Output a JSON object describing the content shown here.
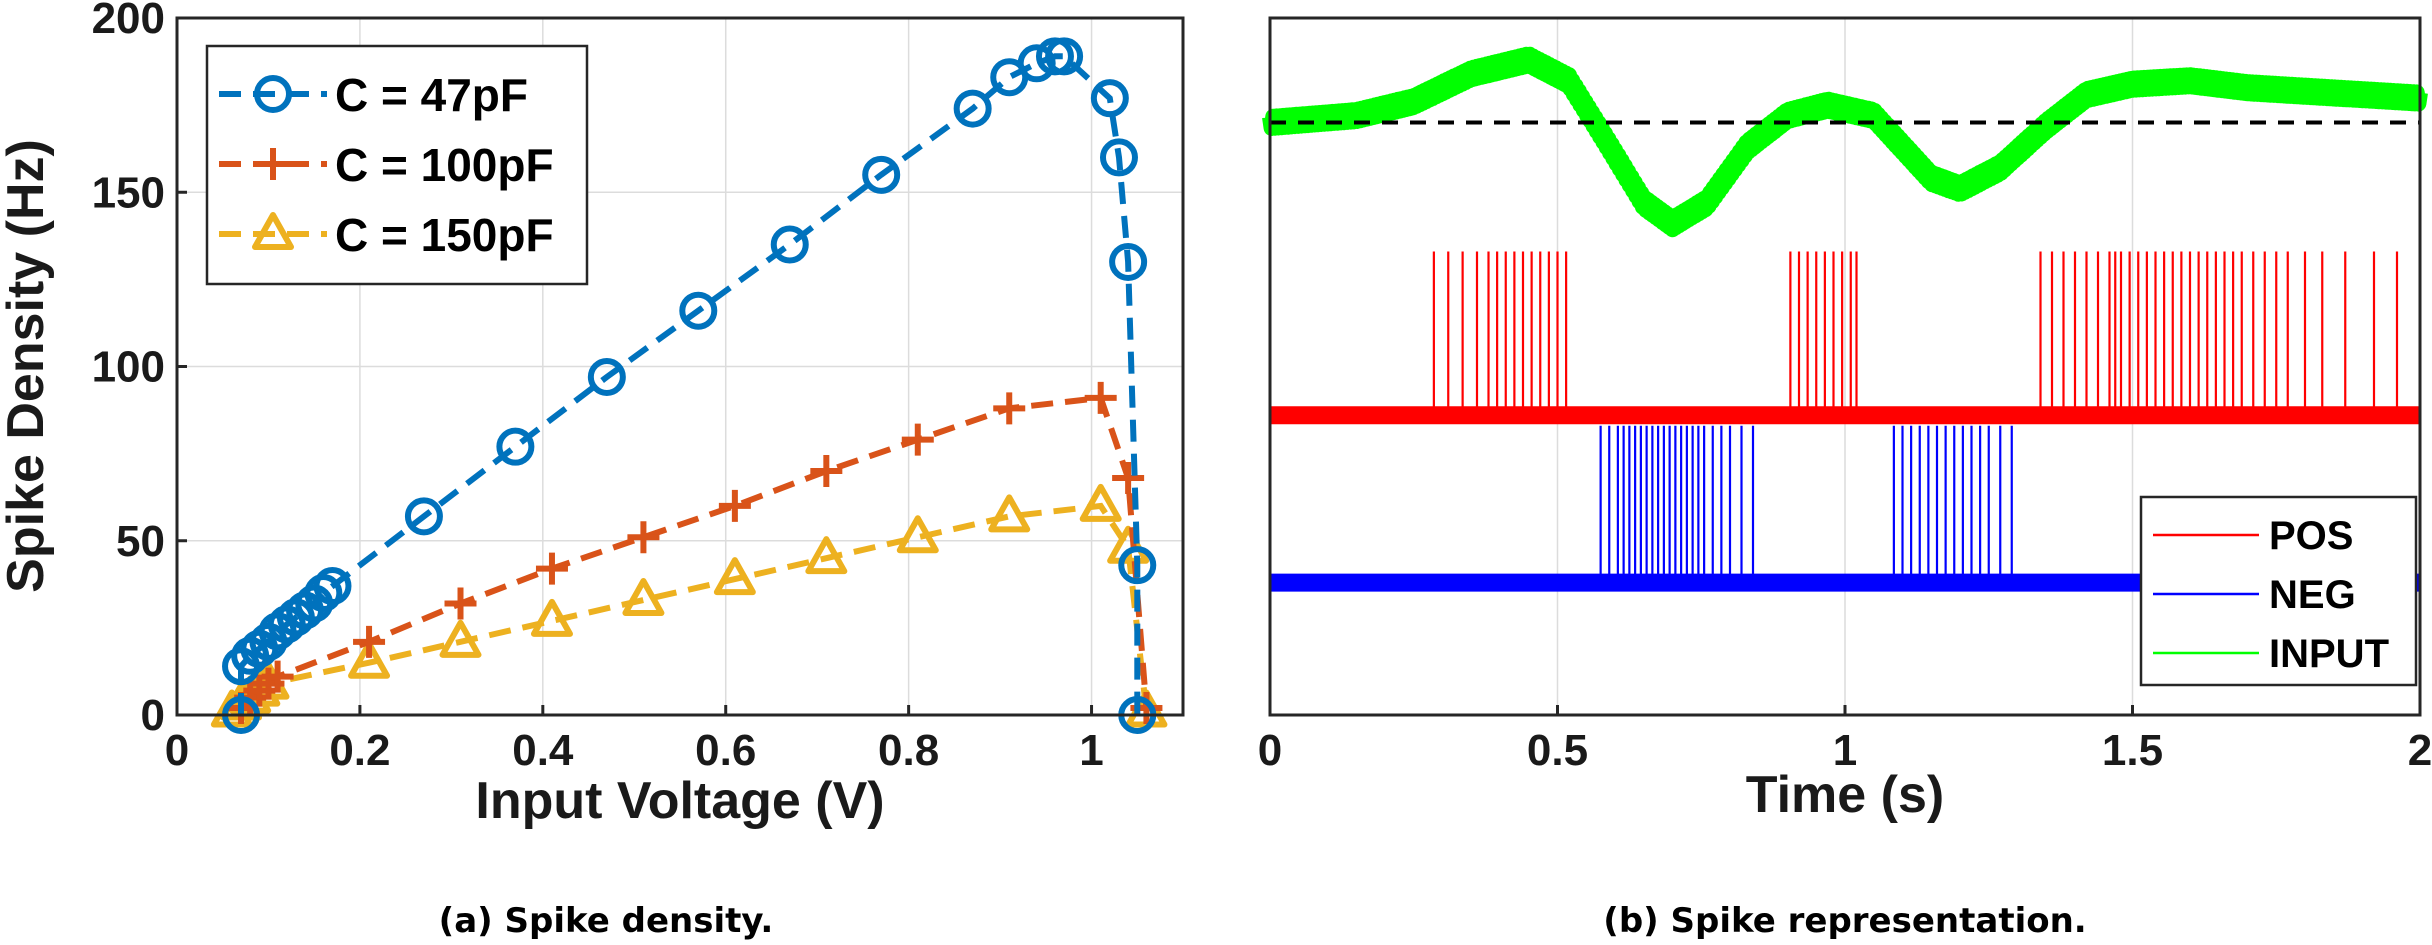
{
  "chart_data": [
    {
      "type": "line",
      "caption": "(a) Spike density.",
      "xlabel": "Input Voltage (V)",
      "ylabel": "Spike Density (Hz)",
      "xlim": [
        0,
        1.1
      ],
      "ylim": [
        0,
        200
      ],
      "xticks": [
        0,
        0.2,
        0.4,
        0.6,
        0.8,
        1
      ],
      "xtick_labels": [
        "0",
        "0.2",
        "0.4",
        "0.6",
        "0.8",
        "1"
      ],
      "yticks": [
        0,
        50,
        100,
        150,
        200
      ],
      "ytick_labels": [
        "0",
        "50",
        "100",
        "150",
        "200"
      ],
      "grid": true,
      "legend_position": "top-left",
      "series": [
        {
          "name": "C = 47pF",
          "color": "#0072BD",
          "marker": "circle",
          "points": [
            [
              0.07,
              0
            ],
            [
              0.07,
              14
            ],
            [
              0.08,
              17
            ],
            [
              0.09,
              19
            ],
            [
              0.1,
              21
            ],
            [
              0.11,
              24
            ],
            [
              0.12,
              26
            ],
            [
              0.13,
              28
            ],
            [
              0.14,
              30
            ],
            [
              0.15,
              32
            ],
            [
              0.16,
              35
            ],
            [
              0.17,
              37
            ],
            [
              0.27,
              57
            ],
            [
              0.37,
              77
            ],
            [
              0.47,
              97
            ],
            [
              0.57,
              116
            ],
            [
              0.67,
              135
            ],
            [
              0.77,
              155
            ],
            [
              0.87,
              174
            ],
            [
              0.91,
              183
            ],
            [
              0.94,
              187
            ],
            [
              0.96,
              189
            ],
            [
              0.97,
              189
            ],
            [
              1.02,
              177
            ],
            [
              1.03,
              160
            ],
            [
              1.04,
              130
            ],
            [
              1.05,
              43
            ],
            [
              1.05,
              0
            ]
          ]
        },
        {
          "name": "C = 100pF",
          "color": "#D95319",
          "marker": "plus",
          "points": [
            [
              0.07,
              2
            ],
            [
              0.08,
              5
            ],
            [
              0.09,
              7
            ],
            [
              0.1,
              9
            ],
            [
              0.11,
              11
            ],
            [
              0.21,
              21
            ],
            [
              0.31,
              32
            ],
            [
              0.41,
              42
            ],
            [
              0.51,
              51
            ],
            [
              0.61,
              60
            ],
            [
              0.71,
              70
            ],
            [
              0.81,
              79
            ],
            [
              0.91,
              88
            ],
            [
              1.01,
              91
            ],
            [
              1.04,
              68
            ],
            [
              1.06,
              2
            ]
          ]
        },
        {
          "name": "C = 150pF",
          "color": "#EDB120",
          "marker": "triangle",
          "points": [
            [
              0.06,
              1
            ],
            [
              0.07,
              3
            ],
            [
              0.08,
              5
            ],
            [
              0.09,
              7
            ],
            [
              0.1,
              9
            ],
            [
              0.21,
              15
            ],
            [
              0.31,
              21
            ],
            [
              0.41,
              27
            ],
            [
              0.51,
              33
            ],
            [
              0.61,
              39
            ],
            [
              0.71,
              45
            ],
            [
              0.81,
              51
            ],
            [
              0.91,
              57
            ],
            [
              1.01,
              60
            ],
            [
              1.04,
              48
            ],
            [
              1.06,
              1
            ]
          ]
        }
      ]
    },
    {
      "type": "line",
      "caption": "(b) Spike representation.",
      "xlabel": "Time (s)",
      "ylabel": "",
      "xlim": [
        0,
        2
      ],
      "xticks": [
        0,
        0.5,
        1,
        1.5,
        2
      ],
      "xtick_labels": [
        "0",
        "0.5",
        "1",
        "1.5",
        "2"
      ],
      "grid": true,
      "legend_position": "bottom-right",
      "reference_line": {
        "style": "dashed",
        "color": "#000000",
        "level": 170
      },
      "series": [
        {
          "name": "POS",
          "color": "#FF0000",
          "baseline": 86,
          "spike_peak": 133,
          "spike_times": [
            0.285,
            0.31,
            0.335,
            0.36,
            0.38,
            0.395,
            0.41,
            0.425,
            0.44,
            0.455,
            0.47,
            0.485,
            0.5,
            0.515,
            0.905,
            0.92,
            0.935,
            0.95,
            0.965,
            0.98,
            0.995,
            1.01,
            1.02,
            1.34,
            1.36,
            1.38,
            1.4,
            1.42,
            1.44,
            1.46,
            1.47,
            1.48,
            1.495,
            1.51,
            1.525,
            1.54,
            1.555,
            1.57,
            1.585,
            1.6,
            1.615,
            1.63,
            1.645,
            1.66,
            1.675,
            1.69,
            1.71,
            1.73,
            1.75,
            1.77,
            1.8,
            1.83,
            1.87,
            1.92,
            1.96
          ]
        },
        {
          "name": "NEG",
          "color": "#0000FF",
          "baseline": 38,
          "spike_peak": 83,
          "spike_times": [
            0.575,
            0.59,
            0.605,
            0.615,
            0.625,
            0.635,
            0.645,
            0.655,
            0.665,
            0.675,
            0.685,
            0.695,
            0.705,
            0.715,
            0.725,
            0.735,
            0.745,
            0.755,
            0.77,
            0.785,
            0.8,
            0.82,
            0.84,
            1.085,
            1.1,
            1.115,
            1.13,
            1.145,
            1.16,
            1.175,
            1.19,
            1.205,
            1.22,
            1.235,
            1.25,
            1.27,
            1.29
          ]
        },
        {
          "name": "INPUT",
          "color": "#00FF00",
          "points": [
            [
              0,
              170
            ],
            [
              0.15,
              172
            ],
            [
              0.25,
              176
            ],
            [
              0.35,
              184
            ],
            [
              0.45,
              188
            ],
            [
              0.52,
              182
            ],
            [
              0.58,
              166
            ],
            [
              0.65,
              147
            ],
            [
              0.7,
              141
            ],
            [
              0.76,
              147
            ],
            [
              0.83,
              163
            ],
            [
              0.9,
              172
            ],
            [
              0.97,
              175
            ],
            [
              1.05,
              172
            ],
            [
              1.1,
              163
            ],
            [
              1.15,
              154
            ],
            [
              1.2,
              151
            ],
            [
              1.27,
              157
            ],
            [
              1.35,
              169
            ],
            [
              1.42,
              178
            ],
            [
              1.5,
              181
            ],
            [
              1.6,
              182
            ],
            [
              1.7,
              180
            ],
            [
              1.8,
              179
            ],
            [
              1.9,
              178
            ],
            [
              2,
              177
            ]
          ]
        }
      ]
    }
  ]
}
